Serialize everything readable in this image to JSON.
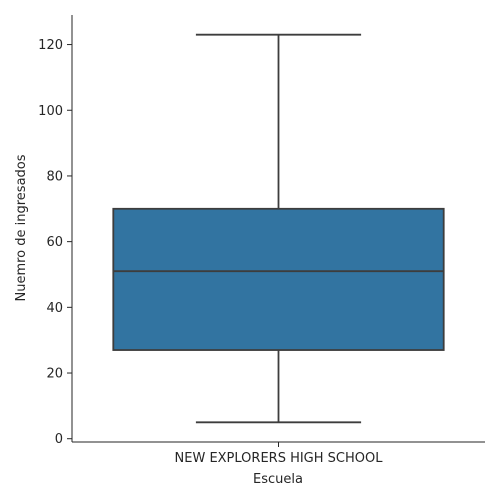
{
  "chart_data": {
    "type": "box",
    "title": "",
    "xlabel": "Escuela",
    "ylabel": "Nuemro de ingresados",
    "categories": [
      "NEW EXPLORERS HIGH SCHOOL"
    ],
    "boxes": [
      {
        "category": "NEW EXPLORERS HIGH SCHOOL",
        "whisker_low": 5,
        "q1": 27,
        "median": 51,
        "q3": 70,
        "whisker_high": 123
      }
    ],
    "ylim": [
      -1,
      129
    ],
    "yticks": [
      0,
      20,
      40,
      60,
      80,
      100,
      120
    ],
    "grid": false,
    "colors": {
      "box_fill": "#3274a1",
      "line": "#3d3d3d",
      "axis": "#262626"
    }
  }
}
